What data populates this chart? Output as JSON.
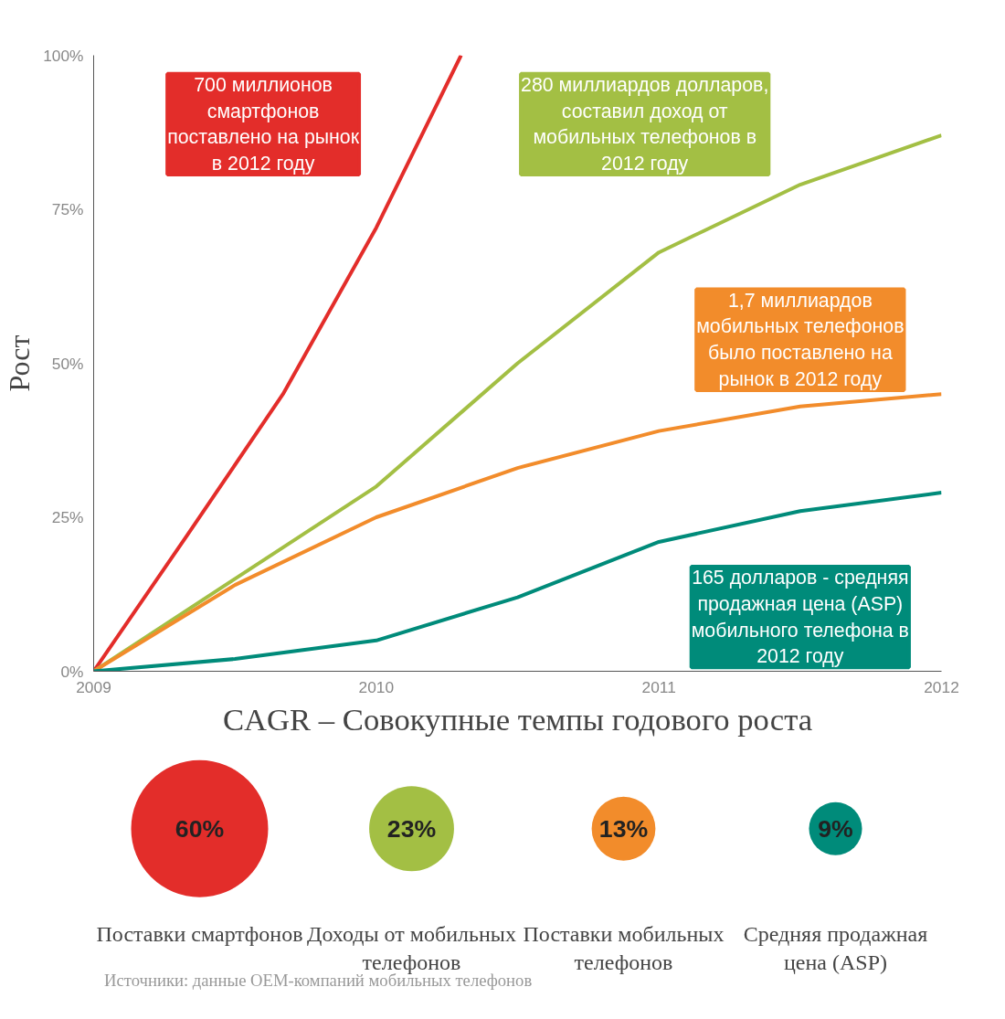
{
  "chart_data": [
    {
      "type": "line",
      "ylabel": "Рост",
      "xlim": [
        2009,
        2012
      ],
      "ylim": [
        0,
        100
      ],
      "xticks": [
        2009,
        2010,
        2011,
        2012
      ],
      "yticks": [
        {
          "value": 0,
          "label": "0%"
        },
        {
          "value": 25,
          "label": "25%"
        },
        {
          "value": 50,
          "label": "50%"
        },
        {
          "value": 75,
          "label": "75%"
        },
        {
          "value": 100,
          "label": "100%"
        }
      ],
      "series": [
        {
          "color": "#e32d2a",
          "x": [
            2009,
            2009.33,
            2009.67,
            2010,
            2010.3
          ],
          "values": [
            0,
            22,
            45,
            72,
            100
          ]
        },
        {
          "color": "#a3bf44",
          "x": [
            2009,
            2009.5,
            2010,
            2010.5,
            2011,
            2011.5,
            2012
          ],
          "values": [
            0,
            15,
            30,
            50,
            68,
            79,
            87
          ]
        },
        {
          "color": "#f28c2b",
          "x": [
            2009,
            2009.5,
            2010,
            2010.5,
            2011,
            2011.5,
            2012
          ],
          "values": [
            0,
            14,
            25,
            33,
            39,
            43,
            45
          ]
        },
        {
          "color": "#008b7a",
          "x": [
            2009,
            2009.5,
            2010,
            2010.5,
            2011,
            2011.5,
            2012
          ],
          "values": [
            0,
            2,
            5,
            12,
            21,
            26,
            29
          ]
        }
      ],
      "annotations": [
        "700 миллионов смартфонов поставлено на рынок в 2012 году",
        "280 миллиардов долларов, составил доход от мобильных телефонов в 2012 году",
        "1,7 миллиардов мобильных телефонов было поставлено на рынок в 2012 году",
        "165 долларов - средняя продажная цена (ASP) мобильного телефона в 2012 году"
      ]
    },
    {
      "type": "other",
      "title": "CAGR – Совокупные темпы годового роста",
      "categories": [
        "Поставки смартфонов",
        "Доходы от мобильных телефонов",
        "Поставки мобильных телефонов",
        "Средняя продажная цена (ASP)"
      ],
      "values": [
        60,
        23,
        13,
        9
      ],
      "value_labels": [
        "60%",
        "23%",
        "13%",
        "9%"
      ],
      "colors": [
        "#e32d2a",
        "#a3bf44",
        "#f28c2b",
        "#008b7a"
      ],
      "annotations": [
        "Источники: данные OEM-компаний мобильных телефонов"
      ]
    }
  ]
}
